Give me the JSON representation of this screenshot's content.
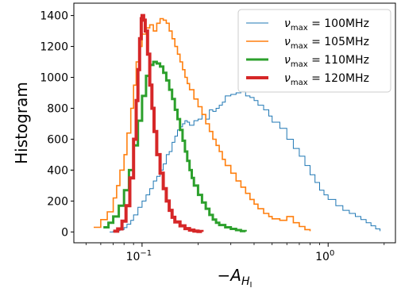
{
  "chart_data": {
    "type": "line",
    "xlabel": "−A",
    "xlabel_subscript": "H",
    "xlabel_subsubscript": "I",
    "ylabel": "Histogram",
    "xscale": "log",
    "xlim": [
      0.043,
      2.3
    ],
    "ylim": [
      -70,
      1480
    ],
    "x_ticks": [
      {
        "value": 0.1,
        "base": "10",
        "exp": "−1"
      },
      {
        "value": 1.0,
        "base": "10",
        "exp": "0"
      }
    ],
    "y_ticks": [
      0,
      200,
      400,
      600,
      800,
      1000,
      1200,
      1400
    ],
    "grid": false,
    "legend_position": "top-right",
    "legend_label_prefix": "ν",
    "legend_label_subscript": "max",
    "series": [
      {
        "name": "= 100MHz",
        "color": "#1f77b4",
        "linewidth": 1,
        "values": [
          [
            0.067,
            0
          ],
          [
            0.07,
            3
          ],
          [
            0.073,
            8
          ],
          [
            0.076,
            15
          ],
          [
            0.08,
            28
          ],
          [
            0.083,
            50
          ],
          [
            0.087,
            75
          ],
          [
            0.09,
            110
          ],
          [
            0.095,
            160
          ],
          [
            0.1,
            200
          ],
          [
            0.105,
            240
          ],
          [
            0.11,
            280
          ],
          [
            0.115,
            330
          ],
          [
            0.12,
            360
          ],
          [
            0.125,
            400
          ],
          [
            0.13,
            440
          ],
          [
            0.135,
            500
          ],
          [
            0.14,
            520
          ],
          [
            0.145,
            580
          ],
          [
            0.15,
            620
          ],
          [
            0.155,
            660
          ],
          [
            0.16,
            680
          ],
          [
            0.165,
            700
          ],
          [
            0.17,
            720
          ],
          [
            0.175,
            710
          ],
          [
            0.18,
            690
          ],
          [
            0.19,
            720
          ],
          [
            0.2,
            730
          ],
          [
            0.21,
            760
          ],
          [
            0.22,
            730
          ],
          [
            0.23,
            790
          ],
          [
            0.24,
            780
          ],
          [
            0.25,
            800
          ],
          [
            0.26,
            820
          ],
          [
            0.27,
            840
          ],
          [
            0.28,
            880
          ],
          [
            0.3,
            890
          ],
          [
            0.32,
            900
          ],
          [
            0.34,
            910
          ],
          [
            0.36,
            880
          ],
          [
            0.38,
            870
          ],
          [
            0.4,
            850
          ],
          [
            0.42,
            820
          ],
          [
            0.45,
            790
          ],
          [
            0.48,
            750
          ],
          [
            0.5,
            710
          ],
          [
            0.55,
            670
          ],
          [
            0.6,
            600
          ],
          [
            0.65,
            540
          ],
          [
            0.7,
            490
          ],
          [
            0.75,
            430
          ],
          [
            0.8,
            370
          ],
          [
            0.85,
            320
          ],
          [
            0.9,
            270
          ],
          [
            0.95,
            240
          ],
          [
            1.0,
            210
          ],
          [
            1.1,
            170
          ],
          [
            1.2,
            140
          ],
          [
            1.3,
            120
          ],
          [
            1.4,
            100
          ],
          [
            1.5,
            80
          ],
          [
            1.6,
            60
          ],
          [
            1.7,
            40
          ],
          [
            1.8,
            20
          ],
          [
            1.9,
            5
          ]
        ]
      },
      {
        "name": "= 105MHz",
        "color": "#ff7f0e",
        "linewidth": 1.6,
        "values": [
          [
            0.055,
            30
          ],
          [
            0.06,
            80
          ],
          [
            0.065,
            130
          ],
          [
            0.07,
            220
          ],
          [
            0.073,
            300
          ],
          [
            0.076,
            400
          ],
          [
            0.08,
            500
          ],
          [
            0.083,
            640
          ],
          [
            0.087,
            800
          ],
          [
            0.09,
            950
          ],
          [
            0.093,
            1100
          ],
          [
            0.097,
            1200
          ],
          [
            0.1,
            1280
          ],
          [
            0.105,
            1320
          ],
          [
            0.11,
            1340
          ],
          [
            0.115,
            1300
          ],
          [
            0.12,
            1350
          ],
          [
            0.125,
            1380
          ],
          [
            0.13,
            1370
          ],
          [
            0.135,
            1350
          ],
          [
            0.14,
            1300
          ],
          [
            0.145,
            1250
          ],
          [
            0.15,
            1200
          ],
          [
            0.155,
            1150
          ],
          [
            0.16,
            1100
          ],
          [
            0.165,
            1050
          ],
          [
            0.17,
            1000
          ],
          [
            0.175,
            960
          ],
          [
            0.18,
            920
          ],
          [
            0.19,
            860
          ],
          [
            0.2,
            810
          ],
          [
            0.21,
            760
          ],
          [
            0.22,
            700
          ],
          [
            0.23,
            650
          ],
          [
            0.24,
            600
          ],
          [
            0.25,
            560
          ],
          [
            0.26,
            520
          ],
          [
            0.27,
            470
          ],
          [
            0.28,
            430
          ],
          [
            0.3,
            380
          ],
          [
            0.32,
            330
          ],
          [
            0.34,
            290
          ],
          [
            0.36,
            250
          ],
          [
            0.38,
            210
          ],
          [
            0.4,
            180
          ],
          [
            0.42,
            150
          ],
          [
            0.45,
            120
          ],
          [
            0.48,
            100
          ],
          [
            0.5,
            85
          ],
          [
            0.55,
            75
          ],
          [
            0.6,
            100
          ],
          [
            0.65,
            60
          ],
          [
            0.7,
            35
          ],
          [
            0.75,
            15
          ],
          [
            0.8,
            5
          ]
        ]
      },
      {
        "name": "= 110MHz",
        "color": "#2ca02c",
        "linewidth": 3,
        "values": [
          [
            0.062,
            30
          ],
          [
            0.066,
            60
          ],
          [
            0.07,
            100
          ],
          [
            0.075,
            170
          ],
          [
            0.08,
            270
          ],
          [
            0.085,
            400
          ],
          [
            0.09,
            560
          ],
          [
            0.095,
            720
          ],
          [
            0.1,
            880
          ],
          [
            0.105,
            1010
          ],
          [
            0.11,
            1080
          ],
          [
            0.115,
            1100
          ],
          [
            0.12,
            1090
          ],
          [
            0.125,
            1070
          ],
          [
            0.13,
            1030
          ],
          [
            0.135,
            980
          ],
          [
            0.14,
            920
          ],
          [
            0.145,
            860
          ],
          [
            0.15,
            790
          ],
          [
            0.155,
            730
          ],
          [
            0.16,
            660
          ],
          [
            0.165,
            590
          ],
          [
            0.17,
            520
          ],
          [
            0.175,
            460
          ],
          [
            0.18,
            400
          ],
          [
            0.185,
            350
          ],
          [
            0.19,
            300
          ],
          [
            0.2,
            240
          ],
          [
            0.21,
            190
          ],
          [
            0.22,
            150
          ],
          [
            0.23,
            110
          ],
          [
            0.24,
            80
          ],
          [
            0.25,
            60
          ],
          [
            0.26,
            45
          ],
          [
            0.28,
            30
          ],
          [
            0.3,
            20
          ],
          [
            0.32,
            12
          ],
          [
            0.34,
            6
          ],
          [
            0.36,
            3
          ]
        ]
      },
      {
        "name": "= 120MHz",
        "color": "#d62728",
        "linewidth": 4,
        "values": [
          [
            0.07,
            5
          ],
          [
            0.074,
            20
          ],
          [
            0.078,
            70
          ],
          [
            0.082,
            170
          ],
          [
            0.086,
            350
          ],
          [
            0.09,
            600
          ],
          [
            0.093,
            850
          ],
          [
            0.095,
            1050
          ],
          [
            0.097,
            1250
          ],
          [
            0.099,
            1380
          ],
          [
            0.1,
            1400
          ],
          [
            0.102,
            1370
          ],
          [
            0.104,
            1300
          ],
          [
            0.107,
            1150
          ],
          [
            0.11,
            950
          ],
          [
            0.113,
            800
          ],
          [
            0.116,
            650
          ],
          [
            0.12,
            500
          ],
          [
            0.125,
            380
          ],
          [
            0.13,
            280
          ],
          [
            0.135,
            200
          ],
          [
            0.14,
            140
          ],
          [
            0.145,
            95
          ],
          [
            0.15,
            65
          ],
          [
            0.16,
            40
          ],
          [
            0.17,
            22
          ],
          [
            0.18,
            12
          ],
          [
            0.19,
            6
          ],
          [
            0.2,
            3
          ],
          [
            0.21,
            1
          ]
        ]
      }
    ]
  }
}
